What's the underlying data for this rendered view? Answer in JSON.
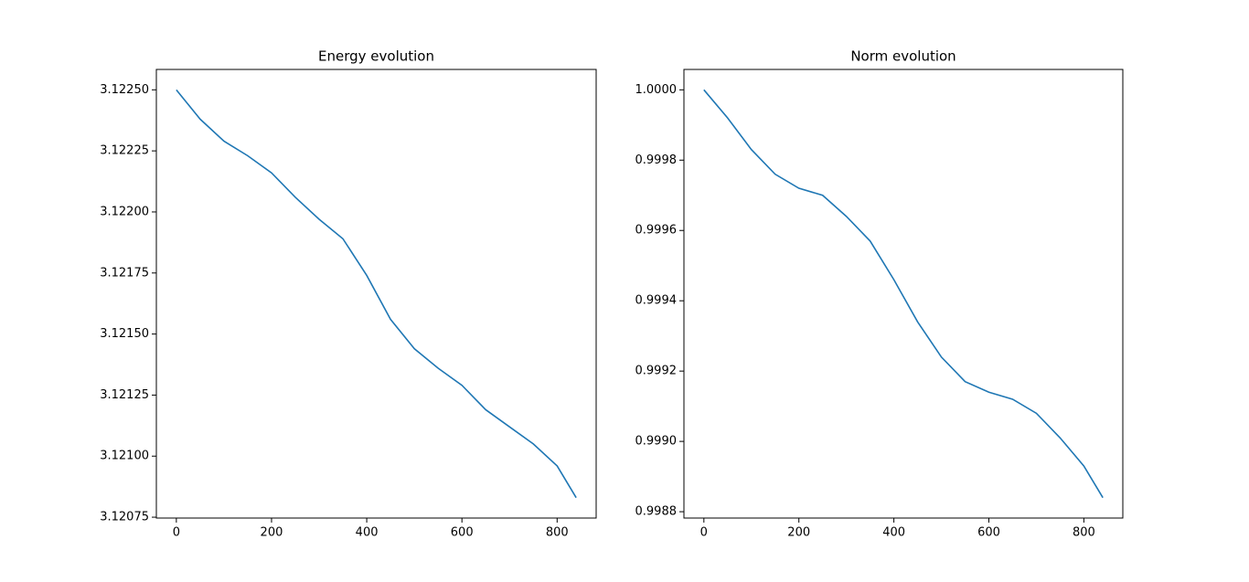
{
  "chart_data": [
    {
      "type": "line",
      "title": "Energy evolution",
      "x": [
        0,
        50,
        100,
        150,
        200,
        250,
        300,
        350,
        400,
        450,
        500,
        550,
        600,
        650,
        700,
        750,
        800,
        840
      ],
      "series": [
        {
          "color": "#1f77b4",
          "values": [
            3.1225,
            3.12238,
            3.12229,
            3.12223,
            3.12216,
            3.12206,
            3.12197,
            3.12189,
            3.12174,
            3.12156,
            3.12144,
            3.12136,
            3.12129,
            3.12119,
            3.12112,
            3.12105,
            3.12096,
            3.12083
          ]
        }
      ],
      "xlim": [
        -42,
        882
      ],
      "xticks": [
        0,
        200,
        400,
        600,
        800
      ],
      "ylim": [
        3.1207465,
        3.1225835
      ],
      "yticks": [
        {
          "value": 3.12075,
          "label": "3.12075"
        },
        {
          "value": 3.121,
          "label": "3.12100"
        },
        {
          "value": 3.12125,
          "label": "3.12125"
        },
        {
          "value": 3.1215,
          "label": "3.12150"
        },
        {
          "value": 3.12175,
          "label": "3.12175"
        },
        {
          "value": 3.122,
          "label": "3.12200"
        },
        {
          "value": 3.12225,
          "label": "3.12225"
        },
        {
          "value": 3.1225,
          "label": "3.12250"
        }
      ]
    },
    {
      "type": "line",
      "title": "Norm evolution",
      "x": [
        0,
        50,
        100,
        150,
        200,
        250,
        300,
        350,
        400,
        450,
        500,
        550,
        600,
        650,
        700,
        750,
        800,
        840
      ],
      "series": [
        {
          "color": "#1f77b4",
          "values": [
            1.0,
            0.99992,
            0.99983,
            0.99976,
            0.99972,
            0.9997,
            0.99964,
            0.99957,
            0.99946,
            0.99934,
            0.99924,
            0.99917,
            0.99914,
            0.99912,
            0.99908,
            0.99901,
            0.99893,
            0.99884
          ]
        }
      ],
      "xlim": [
        -42,
        882
      ],
      "xticks": [
        0,
        200,
        400,
        600,
        800
      ],
      "ylim": [
        0.998782,
        1.000058
      ],
      "yticks": [
        0.9988,
        {
          "value": 0.999,
          "label": "0.9990"
        },
        0.9992,
        0.9994,
        0.9996,
        0.9998,
        {
          "value": 1,
          "label": "1.0000"
        }
      ]
    }
  ]
}
